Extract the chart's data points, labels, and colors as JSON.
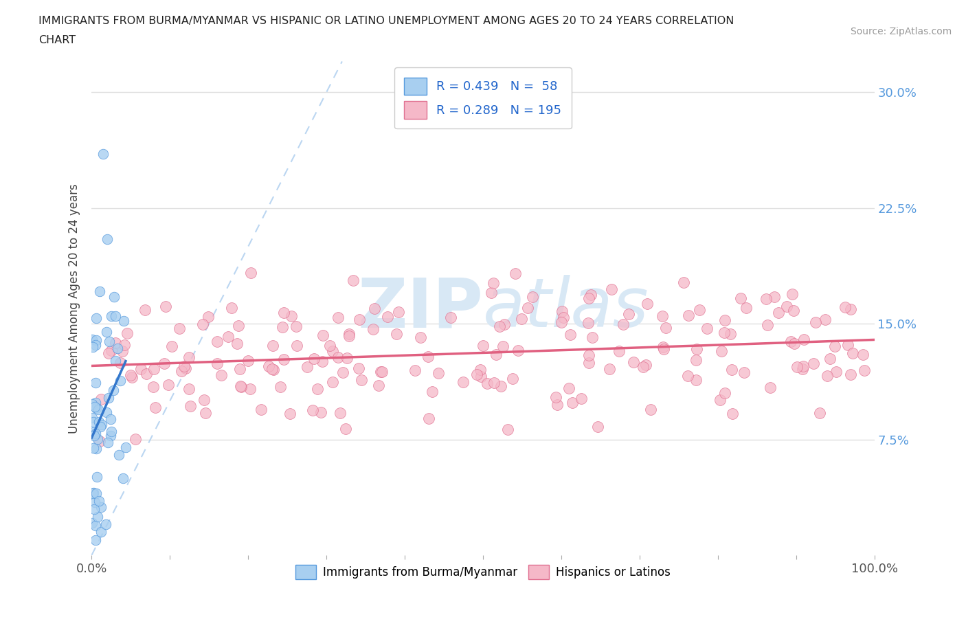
{
  "title_line1": "IMMIGRANTS FROM BURMA/MYANMAR VS HISPANIC OR LATINO UNEMPLOYMENT AMONG AGES 20 TO 24 YEARS CORRELATION",
  "title_line2": "CHART",
  "source": "Source: ZipAtlas.com",
  "ylabel": "Unemployment Among Ages 20 to 24 years",
  "yticks_labels": [
    "7.5%",
    "15.0%",
    "22.5%",
    "30.0%"
  ],
  "ytick_values": [
    7.5,
    15.0,
    22.5,
    30.0
  ],
  "xlim": [
    0,
    100
  ],
  "ylim": [
    0,
    32
  ],
  "legend1_label": "Immigrants from Burma/Myanmar",
  "legend2_label": "Hispanics or Latinos",
  "R1": 0.439,
  "N1": 58,
  "R2": 0.289,
  "N2": 195,
  "color_blue_fill": "#A8CFF0",
  "color_blue_edge": "#5599DD",
  "color_pink_fill": "#F5B8C8",
  "color_pink_edge": "#E07090",
  "color_blue_line": "#3377CC",
  "color_pink_line": "#E06080",
  "color_dashed": "#AACCEE",
  "watermark_color": "#D8E8F5",
  "xtick_color": "#888888",
  "ytick_color": "#5599DD",
  "grid_color": "#E0E0E0"
}
